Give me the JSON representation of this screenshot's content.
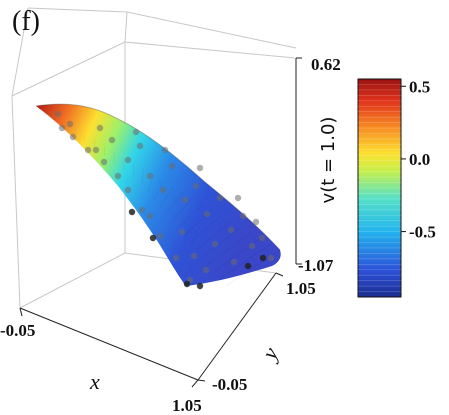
{
  "panel_label": "(f)",
  "chart_data": {
    "type": "surface3d",
    "title": "",
    "xlabel": "x",
    "ylabel": "y",
    "zlabel": "v(t = 1.0)",
    "x_ticks": [
      "-0.05",
      "1.05"
    ],
    "y_ticks": [
      "-0.05",
      "1.05"
    ],
    "z_ticks": [
      "-1.07",
      "0.62"
    ],
    "xlim": [
      -0.05,
      1.05
    ],
    "ylim": [
      -0.05,
      1.05
    ],
    "zlim": [
      -1.07,
      0.62
    ],
    "colormap": "jet",
    "colorbar": {
      "min": -0.95,
      "max": 0.55,
      "ticks": [
        "0.5",
        "0.0",
        "-0.5"
      ],
      "tick_values": [
        0.5,
        0.0,
        -0.5
      ]
    },
    "surface": {
      "description_of_shape": "saddle-like surface, highest near x=0, y=1 corner, lowest near x=1, y=1 corner",
      "corner_values": {
        "x0_y0": 0.0,
        "x1_y0": -0.45,
        "x0_y1": 0.55,
        "x1_y1": -0.95
      }
    },
    "scatter_points": "grey sample points overlaid on surface",
    "grid": true
  }
}
